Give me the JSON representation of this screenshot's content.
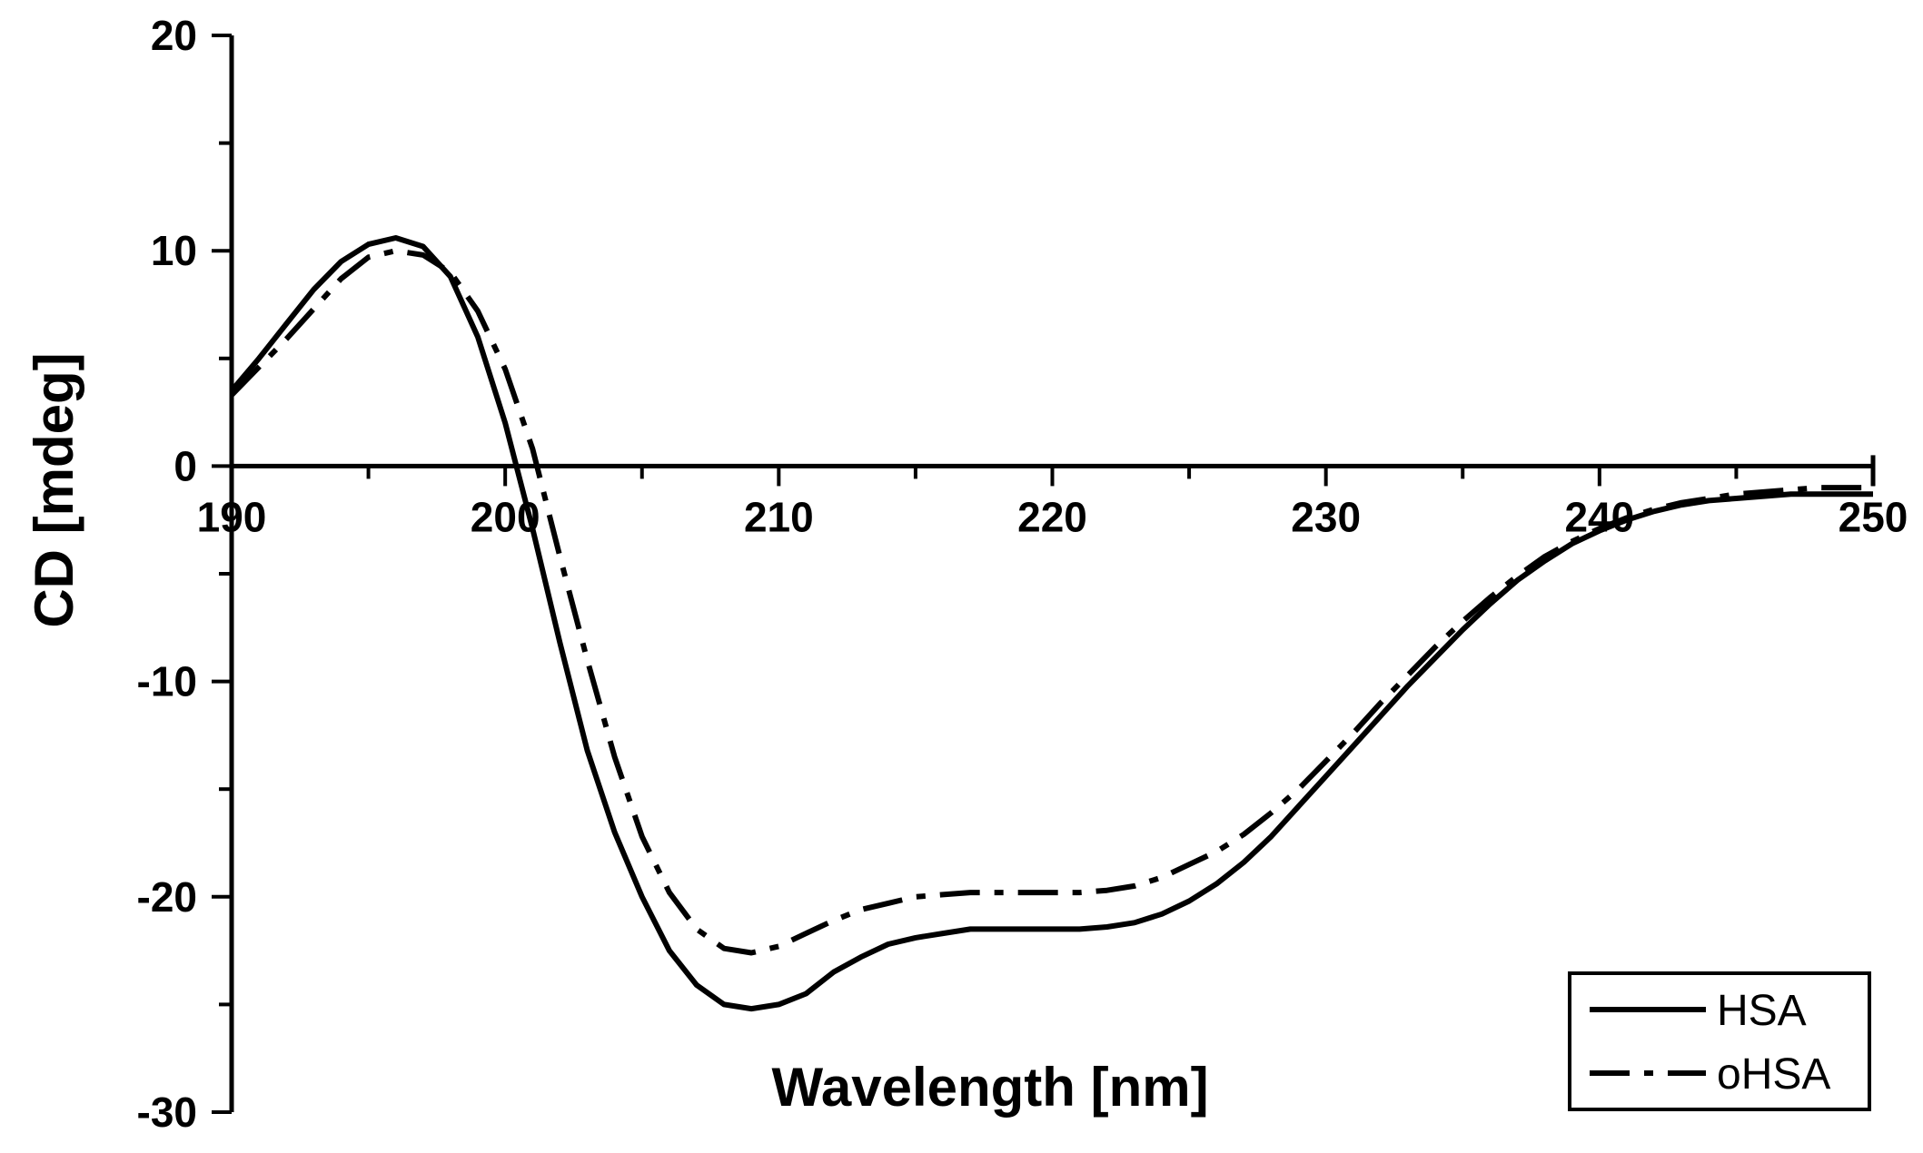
{
  "chart_data": {
    "type": "line",
    "title": "",
    "xlabel": "Wavelength [nm]",
    "ylabel": "CD [mdeg]",
    "xlim": [
      190,
      250
    ],
    "ylim": [
      -30,
      20
    ],
    "xticks": [
      "190",
      "200",
      "210",
      "220",
      "230",
      "240",
      "250"
    ],
    "yticks": [
      "20",
      "10",
      "0",
      "-10",
      "-20",
      "-30"
    ],
    "grid": false,
    "legend_position": "bottom-right",
    "series": [
      {
        "name": "HSA",
        "style": "solid",
        "color": "#000000",
        "x": [
          190,
          191,
          192,
          193,
          194,
          195,
          196,
          197,
          198,
          199,
          200,
          201,
          202,
          203,
          204,
          205,
          206,
          207,
          208,
          209,
          210,
          211,
          212,
          213,
          214,
          215,
          216,
          217,
          218,
          219,
          220,
          221,
          222,
          223,
          224,
          225,
          226,
          227,
          228,
          229,
          230,
          231,
          232,
          233,
          234,
          235,
          236,
          237,
          238,
          239,
          240,
          241,
          242,
          243,
          244,
          245,
          246,
          247,
          248,
          249,
          250
        ],
        "y": [
          3.5,
          5.0,
          6.6,
          8.2,
          9.5,
          10.3,
          10.6,
          10.2,
          8.8,
          6.0,
          2.0,
          -2.9,
          -8.2,
          -13.2,
          -17.0,
          -20.0,
          -22.5,
          -24.1,
          -25.0,
          -25.2,
          -25.0,
          -24.5,
          -23.5,
          -22.8,
          -22.2,
          -21.9,
          -21.7,
          -21.5,
          -21.5,
          -21.5,
          -21.5,
          -21.5,
          -21.4,
          -21.2,
          -20.8,
          -20.2,
          -19.4,
          -18.4,
          -17.2,
          -15.8,
          -14.4,
          -13.0,
          -11.6,
          -10.2,
          -8.9,
          -7.6,
          -6.4,
          -5.3,
          -4.4,
          -3.6,
          -3.0,
          -2.5,
          -2.1,
          -1.8,
          -1.6,
          -1.5,
          -1.4,
          -1.3,
          -1.3,
          -1.3,
          -1.3
        ]
      },
      {
        "name": "oHSA",
        "style": "dash-dot",
        "color": "#000000",
        "x": [
          190,
          191,
          192,
          193,
          194,
          195,
          196,
          197,
          198,
          199,
          200,
          201,
          202,
          203,
          204,
          205,
          206,
          207,
          208,
          209,
          210,
          211,
          212,
          213,
          214,
          215,
          216,
          217,
          218,
          219,
          220,
          221,
          222,
          223,
          224,
          225,
          226,
          227,
          228,
          229,
          230,
          231,
          232,
          233,
          234,
          235,
          236,
          237,
          238,
          239,
          240,
          241,
          242,
          243,
          244,
          245,
          246,
          247,
          248,
          249,
          250
        ],
        "y": [
          3.3,
          4.6,
          5.9,
          7.3,
          8.7,
          9.7,
          10.0,
          9.8,
          9.0,
          7.2,
          4.5,
          0.8,
          -4.2,
          -9.0,
          -13.5,
          -17.2,
          -19.8,
          -21.5,
          -22.4,
          -22.6,
          -22.3,
          -21.7,
          -21.1,
          -20.6,
          -20.3,
          -20.0,
          -19.9,
          -19.8,
          -19.8,
          -19.8,
          -19.8,
          -19.8,
          -19.7,
          -19.5,
          -19.1,
          -18.5,
          -17.9,
          -17.1,
          -16.1,
          -15.0,
          -13.7,
          -12.4,
          -11.0,
          -9.7,
          -8.4,
          -7.2,
          -6.1,
          -5.1,
          -4.2,
          -3.5,
          -2.9,
          -2.4,
          -2.0,
          -1.7,
          -1.5,
          -1.3,
          -1.2,
          -1.1,
          -1.0,
          -1.0,
          -1.0
        ]
      }
    ]
  }
}
